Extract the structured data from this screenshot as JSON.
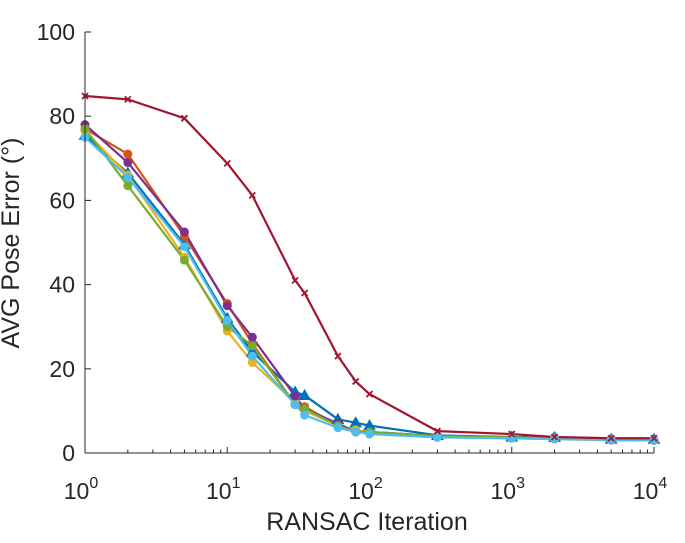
{
  "chart_data": {
    "type": "line",
    "title": "",
    "xlabel": "RANSAC Iteration",
    "ylabel": "AVG Pose Error (°)",
    "xscale": "log",
    "xlim": [
      1,
      10000
    ],
    "ylim": [
      0,
      100
    ],
    "grid": false,
    "legend": "none",
    "yticks": [
      0,
      20,
      40,
      60,
      80,
      100
    ],
    "ytick_labels": [
      "0",
      "20",
      "40",
      "60",
      "80",
      "100"
    ],
    "xticks": [
      1,
      10,
      100,
      1000,
      10000
    ],
    "xtick_labels": [
      {
        "base": "10",
        "exp": "0"
      },
      {
        "base": "10",
        "exp": "1"
      },
      {
        "base": "10",
        "exp": "2"
      },
      {
        "base": "10",
        "exp": "3"
      },
      {
        "base": "10",
        "exp": "4"
      }
    ],
    "x": [
      1,
      2,
      5,
      10,
      15,
      30,
      35,
      60,
      80,
      100,
      300,
      1000,
      2000,
      5000,
      10000
    ],
    "series": [
      {
        "color": "#A2142F",
        "marker": "x",
        "values": [
          84.8,
          84.0,
          79.5,
          68.8,
          61.2,
          41.0,
          38.0,
          23.0,
          17.0,
          14.0,
          5.2,
          4.5,
          3.8,
          3.5,
          3.5
        ]
      },
      {
        "color": "#0072BD",
        "marker": "triangle",
        "values": [
          75.5,
          66.5,
          49.5,
          32.0,
          24.0,
          14.5,
          13.7,
          8.0,
          7.2,
          6.5,
          4.2,
          3.8,
          3.7,
          3.3,
          3.3
        ]
      },
      {
        "color": "#D95319",
        "marker": "circle",
        "values": [
          77.0,
          71.0,
          51.5,
          35.5,
          26.0,
          11.5,
          11.0,
          6.5,
          5.0,
          5.0,
          4.0,
          3.7,
          3.5,
          3.2,
          3.0
        ]
      },
      {
        "color": "#EDB120",
        "marker": "circle",
        "values": [
          76.5,
          66.0,
          46.5,
          29.0,
          21.5,
          12.0,
          10.0,
          6.5,
          5.5,
          5.0,
          3.8,
          3.5,
          3.3,
          3.0,
          3.0
        ]
      },
      {
        "color": "#7E2F8E",
        "marker": "circle",
        "values": [
          78.0,
          69.0,
          52.5,
          35.0,
          27.5,
          13.5,
          10.5,
          7.0,
          5.0,
          5.0,
          4.0,
          3.7,
          3.5,
          3.3,
          3.0
        ]
      },
      {
        "color": "#77AC30",
        "marker": "circle",
        "values": [
          77.0,
          63.5,
          45.8,
          30.0,
          25.5,
          11.5,
          10.5,
          6.5,
          5.0,
          5.0,
          4.0,
          3.7,
          3.5,
          3.2,
          3.0
        ]
      },
      {
        "color": "#4DBEEE",
        "marker": "circle",
        "values": [
          75.0,
          65.5,
          49.0,
          31.5,
          23.0,
          11.5,
          9.0,
          6.0,
          5.0,
          4.5,
          3.7,
          3.5,
          3.3,
          3.1,
          3.0
        ]
      }
    ]
  }
}
